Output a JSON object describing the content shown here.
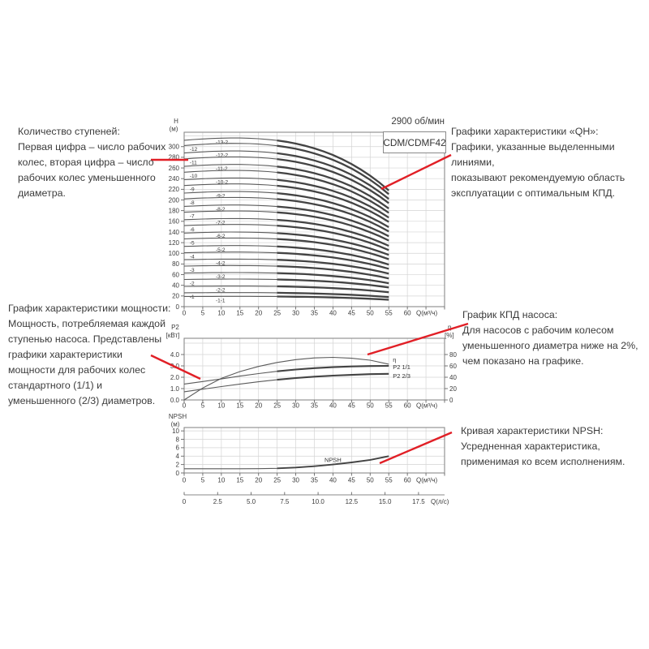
{
  "header": {
    "rpm": "2900 об/мин",
    "model": "CDM/CDMF42"
  },
  "annotations": {
    "stages": {
      "text": "Количество ступеней:\nПервая цифра – число рабочих\nколес, вторая цифра – число\nрабочих колес уменьшенного\nдиаметра.",
      "line": [
        186,
        197,
        232,
        197
      ]
    },
    "power": {
      "text": "График характеристики мощности:\nМощность, потребляемая каждой\nступенью насоса. Представлены\nграфики характеристики\nмощности для рабочих колес\nстандартного (1/1) и\nуменьшенного (2/3) диаметров.",
      "line": [
        186,
        438,
        247,
        467
      ]
    },
    "qh": {
      "text": "Графики характеристики «QH»:\nГрафики, указанные выделенными линиями,\nпоказывают рекомендуемую область\nэксплуатации с оптимальным КПД.",
      "line": [
        556,
        191,
        470,
        233
      ]
    },
    "efficiency": {
      "text": "График КПД насоса:\nДля насосов с рабочим колесом\nуменьшенного диаметра ниже на 2%,\nчем показано на графике.",
      "line": [
        577,
        399,
        453,
        437
      ]
    },
    "npsh": {
      "text": "Кривая характеристики NPSH:\nУсредненная характеристика,\nприменимая ко всем исполнениям.",
      "line": [
        557,
        533,
        468,
        571
      ]
    }
  },
  "colors": {
    "accent_red": "#e11f26",
    "curve": "#5a5a5a",
    "curve_bold": "#434343",
    "grid": "#d4d4d4",
    "border": "#8a8a8a",
    "tick_text": "#3c3c3c"
  },
  "chart_data": [
    {
      "type": "line",
      "id": "qh",
      "title": "Графики характеристики QH, CDM/CDMF42, 2900 об/мин",
      "xlabel": "Q(м³/ч)",
      "ylabel_1": "H",
      "ylabel_2": "(м)",
      "xlim": [
        0,
        70
      ],
      "ylim": [
        0,
        327
      ],
      "xticks": [
        0,
        5,
        10,
        15,
        20,
        25,
        30,
        35,
        40,
        45,
        50,
        55,
        60
      ],
      "yticks": [
        0,
        20,
        40,
        60,
        80,
        100,
        120,
        140,
        160,
        180,
        200,
        220,
        240,
        260,
        280,
        300
      ],
      "grid": true,
      "q_end": 55,
      "bold_range": [
        25,
        55
      ],
      "series": [
        {
          "label": "-13-2",
          "h0": 312,
          "h55": 218
        },
        {
          "label": "-12",
          "h0": 302,
          "h55": 211
        },
        {
          "label": "-12-2",
          "h0": 288,
          "h55": 202
        },
        {
          "label": "-11",
          "h0": 277,
          "h55": 194
        },
        {
          "label": "-11-2",
          "h0": 263,
          "h55": 184
        },
        {
          "label": "-10",
          "h0": 252,
          "h55": 176
        },
        {
          "label": "-10-2",
          "h0": 238,
          "h55": 167
        },
        {
          "label": "-9",
          "h0": 227,
          "h55": 159
        },
        {
          "label": "-9-2",
          "h0": 213,
          "h55": 149
        },
        {
          "label": "-8",
          "h0": 202,
          "h55": 141
        },
        {
          "label": "-8-2",
          "h0": 188,
          "h55": 132
        },
        {
          "label": "-7",
          "h0": 177,
          "h55": 124
        },
        {
          "label": "-7-2",
          "h0": 163,
          "h55": 114
        },
        {
          "label": "-6",
          "h0": 152,
          "h55": 106
        },
        {
          "label": "-6-2",
          "h0": 138,
          "h55": 97
        },
        {
          "label": "-5",
          "h0": 127,
          "h55": 89
        },
        {
          "label": "-5-2",
          "h0": 113,
          "h55": 79
        },
        {
          "label": "-4",
          "h0": 101,
          "h55": 71
        },
        {
          "label": "-4-2",
          "h0": 88,
          "h55": 62
        },
        {
          "label": "-3",
          "h0": 76,
          "h55": 53
        },
        {
          "label": "-3-2",
          "h0": 63,
          "h55": 44
        },
        {
          "label": "-2",
          "h0": 51,
          "h55": 36
        },
        {
          "label": "-2-2",
          "h0": 38,
          "h55": 27
        },
        {
          "label": "-1",
          "h0": 26,
          "h55": 18
        },
        {
          "label": "-1-1",
          "h0": 19,
          "h55": 13
        }
      ]
    },
    {
      "type": "line",
      "id": "p2",
      "title": "График характеристики мощности P2 и КПД η",
      "xlabel": "Q(м³/ч)",
      "ylabel_left_1": "P2",
      "ylabel_left_2": "[кВт]",
      "ylabel_right_1": "η",
      "ylabel_right_2": "[%]",
      "xlim": [
        0,
        70
      ],
      "ylim_left": [
        0,
        5.43
      ],
      "ylim_right": [
        0,
        108.6
      ],
      "xticks": [
        0,
        5,
        10,
        15,
        20,
        25,
        30,
        35,
        40,
        45,
        50,
        55,
        60
      ],
      "yticks_left": [
        "0.0",
        "1.0",
        "2.0",
        "3.0",
        "4.0"
      ],
      "yticks_right": [
        0,
        20,
        40,
        60,
        80
      ],
      "grid": true,
      "bold_range": [
        25,
        55
      ],
      "series": [
        {
          "label": "η",
          "axis": "right",
          "bold": false,
          "label_dy": -3,
          "points": [
            [
              0,
              0
            ],
            [
              5,
              21
            ],
            [
              10,
              38
            ],
            [
              15,
              50
            ],
            [
              20,
              59
            ],
            [
              25,
              66
            ],
            [
              30,
              71
            ],
            [
              35,
              74
            ],
            [
              40,
              75
            ],
            [
              45,
              73.5
            ],
            [
              50,
              70
            ],
            [
              55,
              63
            ]
          ]
        },
        {
          "label": "P2 1/1",
          "axis": "left",
          "bold": true,
          "label_dy": 4,
          "points": [
            [
              0,
              1.4
            ],
            [
              5,
              1.62
            ],
            [
              10,
              1.85
            ],
            [
              15,
              2.1
            ],
            [
              20,
              2.32
            ],
            [
              25,
              2.52
            ],
            [
              30,
              2.68
            ],
            [
              35,
              2.8
            ],
            [
              40,
              2.89
            ],
            [
              45,
              2.95
            ],
            [
              50,
              2.99
            ],
            [
              55,
              3.0
            ]
          ]
        },
        {
          "label": "P2 2/3",
          "axis": "left",
          "bold": true,
          "label_dy": 5,
          "points": [
            [
              0,
              0.72
            ],
            [
              5,
              0.95
            ],
            [
              10,
              1.18
            ],
            [
              15,
              1.4
            ],
            [
              20,
              1.6
            ],
            [
              25,
              1.78
            ],
            [
              30,
              1.93
            ],
            [
              35,
              2.05
            ],
            [
              40,
              2.14
            ],
            [
              45,
              2.21
            ],
            [
              50,
              2.27
            ],
            [
              55,
              2.3
            ]
          ]
        }
      ]
    },
    {
      "type": "line",
      "id": "npsh",
      "title": "Кривая характеристики NPSH",
      "xlabel": "Q(м³/ч)",
      "xlabel2": "Q(л/с)",
      "ylabel_1": "NPSH",
      "ylabel_2": "(м)",
      "xlim": [
        0,
        70
      ],
      "ylim": [
        0,
        10.8
      ],
      "xticks": [
        0,
        5,
        10,
        15,
        20,
        25,
        30,
        35,
        40,
        45,
        50,
        55,
        60
      ],
      "yticks": [
        0,
        2,
        4,
        6,
        8,
        10
      ],
      "xticks2": [
        "0",
        "2.5",
        "5.0",
        "7.5",
        "10.0",
        "12.5",
        "15.0",
        "17.5"
      ],
      "lps_to_m3h": 3.6,
      "grid": true,
      "bold_range": [
        25,
        55
      ],
      "series": [
        {
          "label": "NPSH",
          "label_pos": [
            40,
            2.6
          ],
          "points": [
            [
              0,
              1
            ],
            [
              5,
              1
            ],
            [
              10,
              1
            ],
            [
              15,
              1
            ],
            [
              20,
              1.02
            ],
            [
              25,
              1.1
            ],
            [
              30,
              1.3
            ],
            [
              35,
              1.6
            ],
            [
              40,
              2.0
            ],
            [
              45,
              2.5
            ],
            [
              50,
              3.1
            ],
            [
              55,
              4.0
            ]
          ]
        }
      ]
    }
  ]
}
